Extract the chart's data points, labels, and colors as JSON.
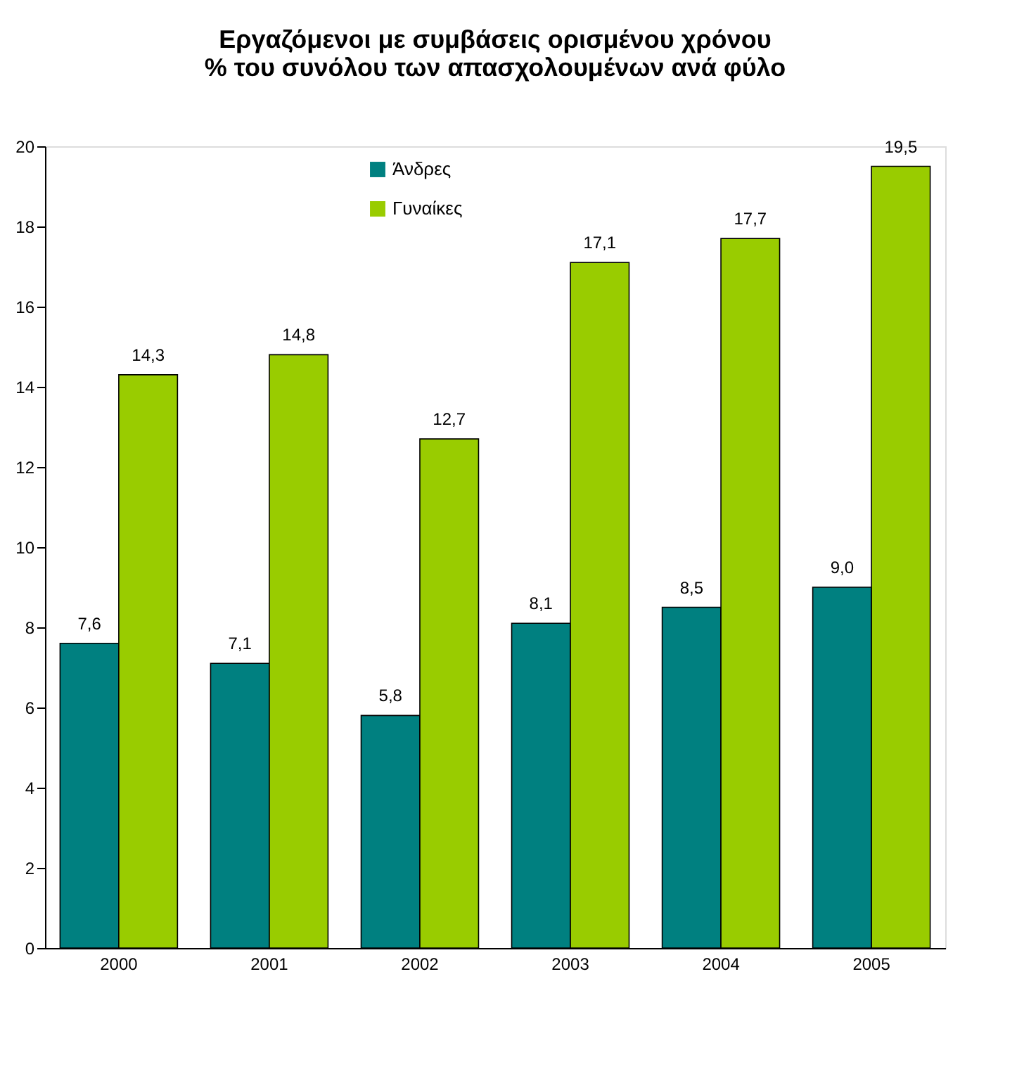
{
  "chart_data": {
    "type": "bar",
    "title": [
      "Εργαζόμενοι με συμβάσεις ορισμένου χρόνου",
      "% του συνόλου των απασχολουμένων ανά φύλο"
    ],
    "categories": [
      "2000",
      "2001",
      "2002",
      "2003",
      "2004",
      "2005"
    ],
    "series": [
      {
        "name": "Άνδρες",
        "color": "#008080",
        "values": [
          7.6,
          7.1,
          5.8,
          8.1,
          8.5,
          9.0
        ],
        "value_labels": [
          "7,6",
          "7,1",
          "5,8",
          "8,1",
          "8,5",
          "9,0"
        ]
      },
      {
        "name": "Γυναίκες",
        "color": "#99cc00",
        "values": [
          14.3,
          14.8,
          12.7,
          17.1,
          17.7,
          19.5
        ],
        "value_labels": [
          "14,3",
          "14,8",
          "12,7",
          "17,1",
          "17,7",
          "19,5"
        ]
      }
    ],
    "ylim": [
      0,
      20
    ],
    "yticks": [
      0,
      2,
      4,
      6,
      8,
      10,
      12,
      14,
      16,
      18,
      20
    ],
    "grid": false,
    "legend": "top left"
  }
}
